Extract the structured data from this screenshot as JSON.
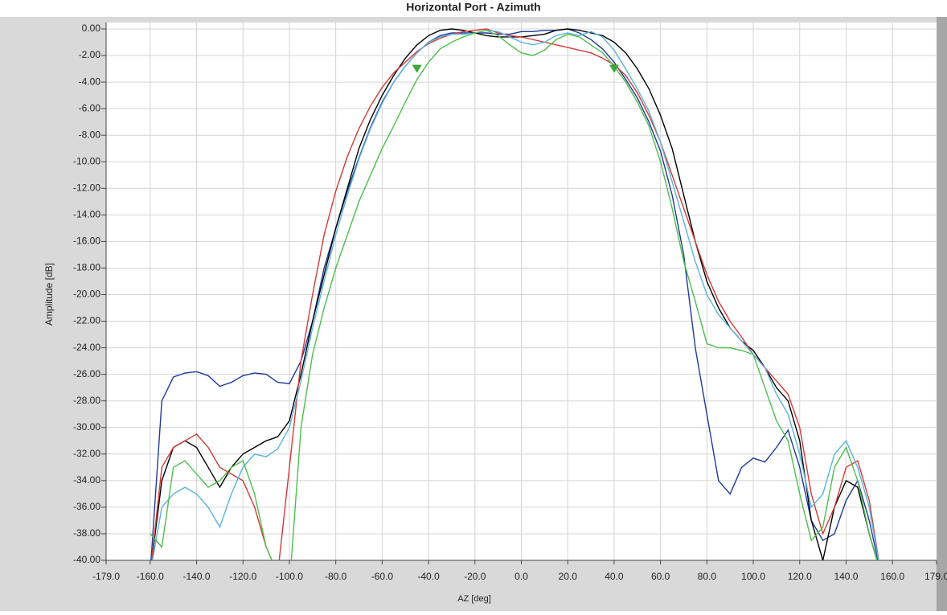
{
  "chart_data": {
    "type": "line",
    "title": "Horizontal Port - Azimuth",
    "xlabel": "AZ [deg]",
    "ylabel": "Amplitude [dB]",
    "xlim": [
      -179,
      179
    ],
    "ylim": [
      -40,
      0
    ],
    "grid": true,
    "xticks": [
      {
        "value": -179,
        "label": "-179.0"
      },
      {
        "value": -160,
        "label": "-160.0"
      },
      {
        "value": -140,
        "label": "-140.0"
      },
      {
        "value": -120,
        "label": "-120.0"
      },
      {
        "value": -100,
        "label": "-100.0"
      },
      {
        "value": -80,
        "label": "-80.0"
      },
      {
        "value": -60,
        "label": "-60.0"
      },
      {
        "value": -40,
        "label": "-40.0"
      },
      {
        "value": -20,
        "label": "-20.0"
      },
      {
        "value": 0,
        "label": "0.0"
      },
      {
        "value": 20,
        "label": "20.0"
      },
      {
        "value": 40,
        "label": "40.0"
      },
      {
        "value": 60,
        "label": "60.0"
      },
      {
        "value": 80,
        "label": "80.0"
      },
      {
        "value": 100,
        "label": "100.0"
      },
      {
        "value": 120,
        "label": "120.0"
      },
      {
        "value": 140,
        "label": "140.0"
      },
      {
        "value": 160,
        "label": "160.0"
      },
      {
        "value": 179,
        "label": "179.0"
      }
    ],
    "yticks": [
      {
        "value": 0,
        "label": "0.00"
      },
      {
        "value": -2,
        "label": "-2.00"
      },
      {
        "value": -4,
        "label": "-4.00"
      },
      {
        "value": -6,
        "label": "-6.00"
      },
      {
        "value": -8,
        "label": "-8.00"
      },
      {
        "value": -10,
        "label": "-10.00"
      },
      {
        "value": -12,
        "label": "-12.00"
      },
      {
        "value": -14,
        "label": "-14.00"
      },
      {
        "value": -16,
        "label": "-16.00"
      },
      {
        "value": -18,
        "label": "-18.00"
      },
      {
        "value": -20,
        "label": "-20.00"
      },
      {
        "value": -22,
        "label": "-22.00"
      },
      {
        "value": -24,
        "label": "-24.00"
      },
      {
        "value": -26,
        "label": "-26.00"
      },
      {
        "value": -28,
        "label": "-28.00"
      },
      {
        "value": -30,
        "label": "-30.00"
      },
      {
        "value": -32,
        "label": "-32.00"
      },
      {
        "value": -34,
        "label": "-34.00"
      },
      {
        "value": -36,
        "label": "-36.00"
      },
      {
        "value": -38,
        "label": "-38.00"
      },
      {
        "value": -40,
        "label": "-40.00"
      }
    ],
    "x": [
      -160,
      -155,
      -150,
      -145,
      -140,
      -135,
      -130,
      -125,
      -120,
      -115,
      -110,
      -105,
      -100,
      -95,
      -90,
      -85,
      -80,
      -75,
      -70,
      -65,
      -60,
      -55,
      -50,
      -45,
      -40,
      -35,
      -30,
      -25,
      -20,
      -15,
      -10,
      -5,
      0,
      5,
      10,
      15,
      20,
      25,
      30,
      35,
      40,
      45,
      50,
      55,
      60,
      65,
      70,
      75,
      80,
      85,
      90,
      95,
      100,
      105,
      110,
      115,
      120,
      125,
      130,
      135,
      140,
      145,
      150,
      155
    ],
    "series": [
      {
        "color": "#1f3a9a",
        "values": [
          -41,
          -28,
          -26.2,
          -25.9,
          -25.8,
          -26.1,
          -26.9,
          -26.6,
          -26.1,
          -25.9,
          -26,
          -26.6,
          -26.7,
          -25,
          -22,
          -18,
          -15,
          -12.2,
          -9.7,
          -7.4,
          -5.5,
          -4,
          -2.8,
          -1.8,
          -1,
          -0.5,
          -0.3,
          -0.3,
          -0.3,
          -0.3,
          -0.4,
          -0.4,
          -0.2,
          -0.2,
          -0.1,
          -0.1,
          0,
          -0.3,
          -0.8,
          -1.5,
          -2.5,
          -3.8,
          -5.2,
          -7,
          -9.2,
          -12.5,
          -17,
          -24,
          -29,
          -34,
          -35,
          -33,
          -32.3,
          -32.6,
          -31.5,
          -30.2,
          -33,
          -37,
          -38.5,
          -38,
          -35.5,
          -34,
          -37,
          -41
        ]
      },
      {
        "color": "#000000",
        "values": [
          -41,
          -34,
          -31.5,
          -31,
          -31.5,
          -33,
          -34.5,
          -33,
          -32,
          -31.5,
          -31,
          -30.7,
          -29.5,
          -26,
          -22,
          -18.5,
          -15,
          -12,
          -9,
          -6.8,
          -5,
          -3.5,
          -2.2,
          -1.2,
          -0.5,
          -0.1,
          0,
          -0.1,
          -0.3,
          -0.5,
          -0.6,
          -0.6,
          -0.6,
          -0.5,
          -0.4,
          -0.1,
          0,
          -0.1,
          -0.3,
          -0.5,
          -1,
          -1.8,
          -3,
          -4.5,
          -6.5,
          -9,
          -12.5,
          -16,
          -19,
          -21,
          -22.5,
          -23.5,
          -24.2,
          -25.5,
          -27,
          -28,
          -31,
          -37,
          -40,
          -36,
          -34,
          -34.5,
          -38,
          -41
        ]
      },
      {
        "color": "#d23a3a",
        "values": [
          -41,
          -33,
          -31.5,
          -31,
          -30.5,
          -31.5,
          -33,
          -33.5,
          -34,
          -36,
          -39,
          -41,
          -33,
          -25,
          -20,
          -15.5,
          -12.2,
          -9.6,
          -7.5,
          -5.8,
          -4.4,
          -3.3,
          -2.5,
          -1.7,
          -1.1,
          -0.7,
          -0.4,
          -0.2,
          -0.1,
          0,
          -0.3,
          -0.5,
          -0.6,
          -0.8,
          -1,
          -1.2,
          -1.4,
          -1.6,
          -1.8,
          -2.2,
          -2.7,
          -3.5,
          -4.8,
          -6.5,
          -8.5,
          -11,
          -13.5,
          -16,
          -18.5,
          -20.5,
          -22,
          -23.2,
          -24.5,
          -25.5,
          -26.5,
          -27.5,
          -30,
          -35,
          -38,
          -36,
          -33,
          -32.5,
          -35.5,
          -41
        ]
      },
      {
        "color": "#5ab4dc",
        "values": [
          -41,
          -36,
          -35,
          -34.5,
          -35,
          -36,
          -37.5,
          -35,
          -33,
          -32,
          -32.2,
          -31.6,
          -30,
          -26.5,
          -22.5,
          -19,
          -15.5,
          -12.5,
          -9.8,
          -7.5,
          -5.6,
          -4,
          -2.8,
          -1.8,
          -1,
          -0.6,
          -0.4,
          -0.4,
          -0.3,
          -0.1,
          -0.2,
          -0.6,
          -1,
          -1.2,
          -1,
          -0.5,
          -0.3,
          -0.5,
          -0.2,
          -0.6,
          -1.6,
          -3,
          -4.5,
          -6.2,
          -8.5,
          -11.5,
          -14.5,
          -17.5,
          -20,
          -21.5,
          -22.5,
          -23.5,
          -24.5,
          -25.5,
          -27.5,
          -29,
          -32,
          -36,
          -35,
          -32,
          -31,
          -33,
          -36,
          -41
        ]
      },
      {
        "color": "#4cbf4c",
        "values": [
          -38,
          -39,
          -33,
          -32.5,
          -33.5,
          -34.5,
          -34,
          -33,
          -32.5,
          -35,
          -39,
          -41,
          -42,
          -30,
          -24.5,
          -21,
          -18,
          -15.5,
          -13,
          -11,
          -9,
          -7.3,
          -5.5,
          -3.8,
          -2.5,
          -1.5,
          -1,
          -0.6,
          -0.3,
          -0.1,
          -0.5,
          -1.2,
          -1.8,
          -2,
          -1.6,
          -0.8,
          -0.4,
          -0.6,
          -1.2,
          -1.8,
          -2.8,
          -4,
          -5.5,
          -7.3,
          -10,
          -13.5,
          -17.5,
          -20.5,
          -23.7,
          -24,
          -24,
          -24.2,
          -24.5,
          -27,
          -29.5,
          -31,
          -35,
          -38.5,
          -37.5,
          -33,
          -31.5,
          -34,
          -38,
          -41
        ]
      }
    ],
    "markers": {
      "color": "#3aa83a",
      "x": [
        -45,
        40
      ],
      "y": [
        -3,
        -3
      ]
    }
  }
}
